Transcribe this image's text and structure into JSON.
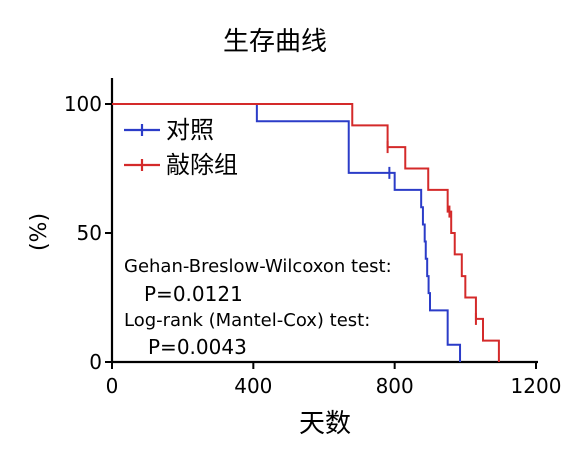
{
  "chart_data": {
    "type": "line",
    "title": "生存曲线",
    "xlabel": "天数",
    "ylabel": "(%)",
    "xlim": [
      0,
      1200
    ],
    "ylim": [
      0,
      100
    ],
    "x_ticks": [
      {
        "value": 0,
        "label": "0"
      },
      {
        "value": 400,
        "label": "400"
      },
      {
        "value": 800,
        "label": "800"
      },
      {
        "value": 1200,
        "label": "1200"
      }
    ],
    "y_ticks": [
      {
        "value": 0,
        "label": "0"
      },
      {
        "value": 50,
        "label": "50"
      },
      {
        "value": 100,
        "label": "100"
      }
    ],
    "grid": false,
    "legend_position": "top-left",
    "series": [
      {
        "name": "对照",
        "color": "#2b3cc8",
        "steps": [
          {
            "x": 0,
            "y": 100
          },
          {
            "x": 410,
            "y": 93.3
          },
          {
            "x": 670,
            "y": 73.3
          },
          {
            "x": 800,
            "y": 66.7
          },
          {
            "x": 875,
            "y": 60
          },
          {
            "x": 880,
            "y": 53.3
          },
          {
            "x": 885,
            "y": 46.7
          },
          {
            "x": 888,
            "y": 40
          },
          {
            "x": 892,
            "y": 33.3
          },
          {
            "x": 896,
            "y": 26.7
          },
          {
            "x": 900,
            "y": 20
          },
          {
            "x": 950,
            "y": 6.7
          },
          {
            "x": 985,
            "y": 0
          }
        ],
        "censored": [
          785
        ]
      },
      {
        "name": "敲除组",
        "color": "#d42a2a",
        "steps": [
          {
            "x": 0,
            "y": 100
          },
          {
            "x": 680,
            "y": 91.7
          },
          {
            "x": 780,
            "y": 83.3
          },
          {
            "x": 830,
            "y": 75
          },
          {
            "x": 895,
            "y": 66.7
          },
          {
            "x": 950,
            "y": 58.3
          },
          {
            "x": 960,
            "y": 50
          },
          {
            "x": 970,
            "y": 41.7
          },
          {
            "x": 990,
            "y": 33.3
          },
          {
            "x": 1000,
            "y": 25
          },
          {
            "x": 1030,
            "y": 16.7
          },
          {
            "x": 1050,
            "y": 8.3
          },
          {
            "x": 1095,
            "y": 0
          }
        ],
        "censored": [
          780,
          955,
          1030
        ]
      }
    ],
    "annotations": [
      "Gehan-Breslow-Wilcoxon test:",
      "P=0.0121",
      "Log-rank (Mantel-Cox) test:",
      "P=0.0043"
    ]
  }
}
